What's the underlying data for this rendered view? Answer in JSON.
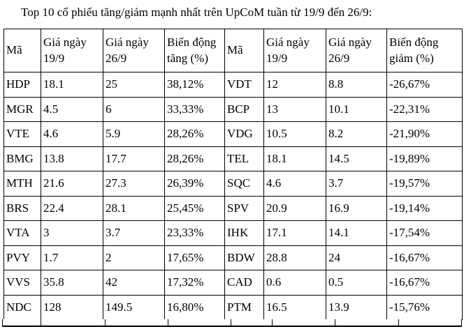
{
  "title": "Top 10 cổ phiếu tăng/giảm mạnh nhất trên UpCoM tuần từ 19/9 đến 26/9:",
  "colors": {
    "text": "#000000",
    "border": "#000000",
    "background": "#ffffff"
  },
  "table": {
    "columns": [
      "Mã",
      "Giá ngày 19/9",
      "Giá ngày 26/9",
      "Biến động tăng (%)",
      "Mã",
      "Giá ngày 19/9",
      "Giá ngày 26/9",
      "Biến động giảm (%)"
    ],
    "rows": [
      [
        "HDP",
        "18.1",
        "25",
        "38,12%",
        "VDT",
        "12",
        "8.8",
        "-26,67%"
      ],
      [
        "MGR",
        "4.5",
        "6",
        "33,33%",
        "BCP",
        "13",
        "10.1",
        "-22,31%"
      ],
      [
        "VTE",
        "4.6",
        "5.9",
        "28,26%",
        "VDG",
        "10.5",
        "8.2",
        "-21,90%"
      ],
      [
        "BMG",
        "13.8",
        "17.7",
        "28,26%",
        "TEL",
        "18.1",
        "14.5",
        "-19,89%"
      ],
      [
        "MTH",
        "21.6",
        "27.3",
        "26,39%",
        "SQC",
        "4.6",
        "3.7",
        "-19,57%"
      ],
      [
        "BRS",
        "22.4",
        "28.1",
        "25,45%",
        "SPV",
        "20.9",
        "16.9",
        "-19,14%"
      ],
      [
        "VTA",
        "3",
        "3.7",
        "23,33%",
        "IHK",
        "17.1",
        "14.1",
        "-17,54%"
      ],
      [
        "PVY",
        "1.7",
        "2",
        "17,65%",
        "BDW",
        "28.8",
        "24",
        "-16,67%"
      ],
      [
        "VVS",
        "35.8",
        "42",
        "17,32%",
        "CAD",
        "0.6",
        "0.5",
        "-16,67%"
      ],
      [
        "NDC",
        "128",
        "149.5",
        "16,80%",
        "PTM",
        "16.5",
        "13.9",
        "-15,76%"
      ]
    ]
  }
}
